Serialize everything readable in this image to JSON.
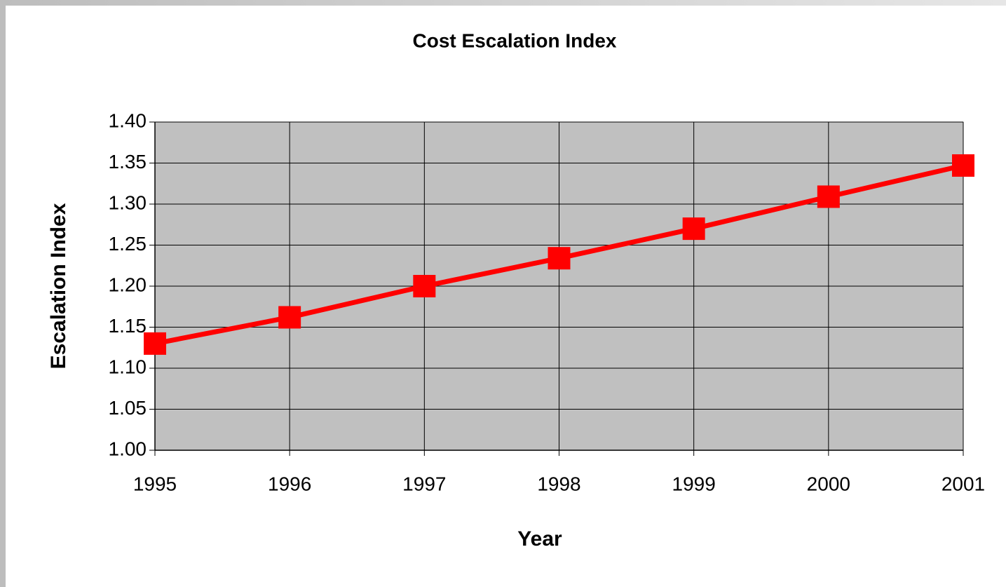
{
  "chart_data": {
    "type": "line",
    "title": "Cost Escalation Index",
    "xlabel": "Year",
    "ylabel": "Escalation Index",
    "x": [
      1995,
      1996,
      1997,
      1998,
      1999,
      2000,
      2001
    ],
    "series": [
      {
        "name": "Escalation Index",
        "color": "#ff0000",
        "values": [
          1.13,
          1.162,
          1.2,
          1.234,
          1.27,
          1.309,
          1.347
        ]
      }
    ],
    "xlim": [
      1995,
      2001
    ],
    "xticks": [
      1995,
      1996,
      1997,
      1998,
      1999,
      2000,
      2001
    ],
    "ylim": [
      1.0,
      1.4
    ],
    "yticks": [
      {
        "value": 1.0,
        "label": "1.00"
      },
      {
        "value": 1.05,
        "label": "1.05"
      },
      {
        "value": 1.1,
        "label": "1.10"
      },
      {
        "value": 1.15,
        "label": "1.15"
      },
      {
        "value": 1.2,
        "label": "1.20"
      },
      {
        "value": 1.25,
        "label": "1.25"
      },
      {
        "value": 1.3,
        "label": "1.30"
      },
      {
        "value": 1.35,
        "label": "1.35"
      },
      {
        "value": 1.4,
        "label": "1.40"
      }
    ],
    "grid": true,
    "plot_background": "#c0c0c0"
  }
}
